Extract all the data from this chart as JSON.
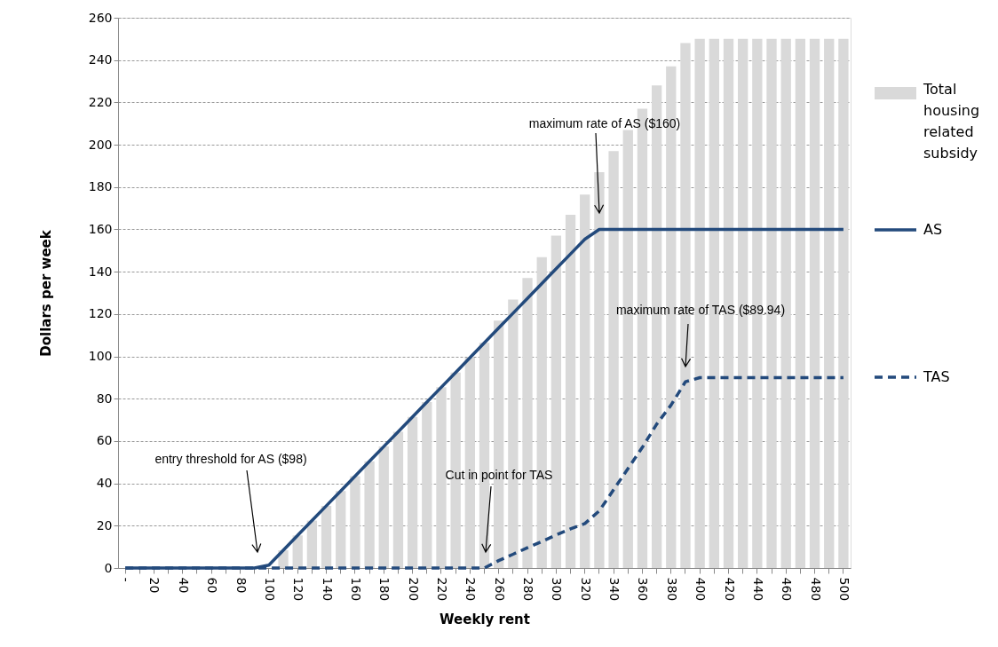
{
  "chart_data": {
    "type": "bar",
    "xlabel": "Weekly rent",
    "ylabel": "Dollars per week",
    "categories": [
      "-",
      null,
      "20",
      null,
      "40",
      null,
      "60",
      null,
      "80",
      null,
      "100",
      null,
      "120",
      null,
      "140",
      null,
      "160",
      null,
      "180",
      null,
      "200",
      null,
      "220",
      null,
      "240",
      null,
      "260",
      null,
      "280",
      null,
      "300",
      null,
      "320",
      null,
      "340",
      null,
      "360",
      null,
      "380",
      null,
      "400",
      null,
      "420",
      null,
      "440",
      null,
      "460",
      null,
      "480",
      null,
      "500"
    ],
    "series": [
      {
        "name": "Total housing related subsidy",
        "color": "#d9d9d9",
        "values": [
          0,
          0,
          0,
          0,
          0,
          0,
          0,
          0,
          0,
          0,
          null,
          8.4,
          15.4,
          22.4,
          29.4,
          36.4,
          43.4,
          50.4,
          57.4,
          64.4,
          71.4,
          78.4,
          85.4,
          92.4,
          99.4,
          106.4,
          116.9,
          126.9,
          137,
          146.9,
          157,
          166.9,
          176.4,
          187,
          197,
          207,
          217,
          228,
          237,
          248,
          250,
          250,
          250,
          250,
          250,
          250,
          250,
          250,
          250,
          250,
          250
        ]
      },
      {
        "name": "AS",
        "type": "line",
        "color": "#234a7c",
        "line_style": "solid",
        "values": [
          0,
          0,
          0,
          0,
          0,
          0,
          0,
          0,
          0,
          0,
          1.4,
          8.4,
          15.4,
          22.4,
          29.4,
          36.4,
          43.4,
          50.4,
          57.4,
          64.4,
          71.4,
          78.4,
          85.4,
          92.4,
          99.4,
          106.4,
          113.4,
          120.4,
          127.4,
          134.4,
          141.4,
          148.4,
          155.4,
          160,
          160,
          160,
          160,
          160,
          160,
          160,
          160,
          160,
          160,
          160,
          160,
          160,
          160,
          160,
          160,
          160,
          160
        ]
      },
      {
        "name": "TAS",
        "type": "line",
        "color": "#234a7c",
        "line_style": "dashed",
        "values": [
          0,
          0,
          0,
          0,
          0,
          0,
          0,
          0,
          0,
          0,
          0,
          0,
          0,
          0,
          0,
          0,
          0,
          0,
          0,
          0,
          0,
          0,
          0,
          0,
          0,
          0,
          3.5,
          6.5,
          9.6,
          12.5,
          15.6,
          18.5,
          21,
          27,
          37,
          47,
          57,
          68,
          77,
          88,
          89.94,
          89.94,
          89.94,
          89.94,
          89.94,
          89.94,
          89.94,
          89.94,
          89.94,
          89.94,
          89.94
        ]
      }
    ],
    "ylim": [
      0,
      260
    ],
    "yticks": [
      0,
      20,
      40,
      60,
      80,
      100,
      120,
      140,
      160,
      180,
      200,
      220,
      240,
      260
    ],
    "grid": "y",
    "legend": "right",
    "annotations": [
      "maximum rate of AS ($160)",
      "maximum rate of TAS ($89.94)",
      "entry threshold for AS ($98)",
      "Cut in point for TAS"
    ]
  }
}
